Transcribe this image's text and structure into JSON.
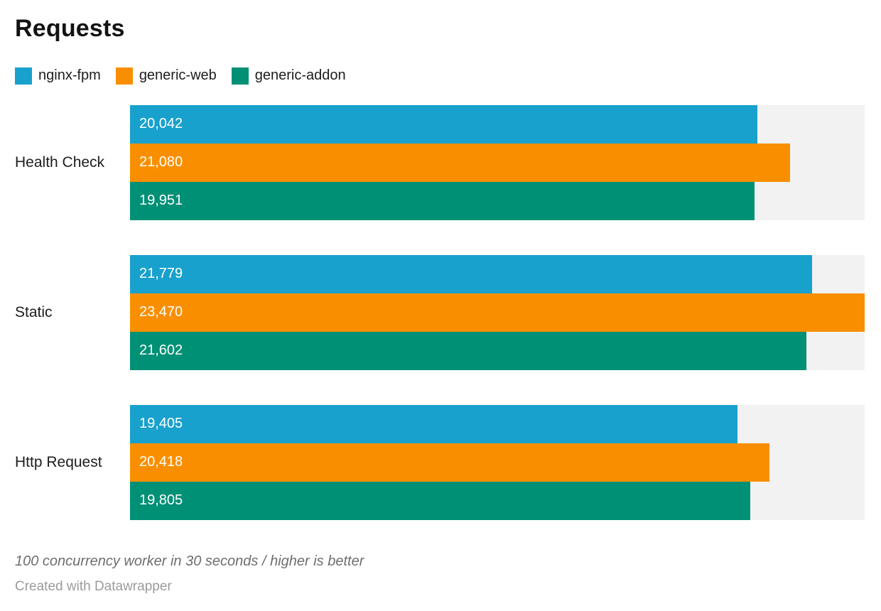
{
  "title": "Requests",
  "legend": {
    "items": [
      {
        "label": "nginx-fpm",
        "color": "#18a1cd"
      },
      {
        "label": "generic-web",
        "color": "#f98f00"
      },
      {
        "label": "generic-addon",
        "color": "#009076"
      }
    ]
  },
  "chart_data": {
    "type": "bar",
    "orientation": "horizontal",
    "title": "Requests",
    "categories": [
      "Health Check",
      "Static",
      "Http Request"
    ],
    "series": [
      {
        "name": "nginx-fpm",
        "color": "#18a1cd",
        "values": [
          20042,
          21779,
          19405
        ]
      },
      {
        "name": "generic-web",
        "color": "#f98f00",
        "values": [
          21080,
          23470,
          20418
        ]
      },
      {
        "name": "generic-addon",
        "color": "#009076",
        "values": [
          19951,
          21602,
          19805
        ]
      }
    ],
    "xlim": [
      0,
      23470
    ],
    "value_labels_shown": true,
    "value_label_format": "thousands-comma",
    "grid": false,
    "legend_position": "top",
    "track_color": "#f2f2f2"
  },
  "footer": {
    "note": "100 concurrency worker in 30 seconds / higher is better",
    "credit": "Created with Datawrapper"
  }
}
